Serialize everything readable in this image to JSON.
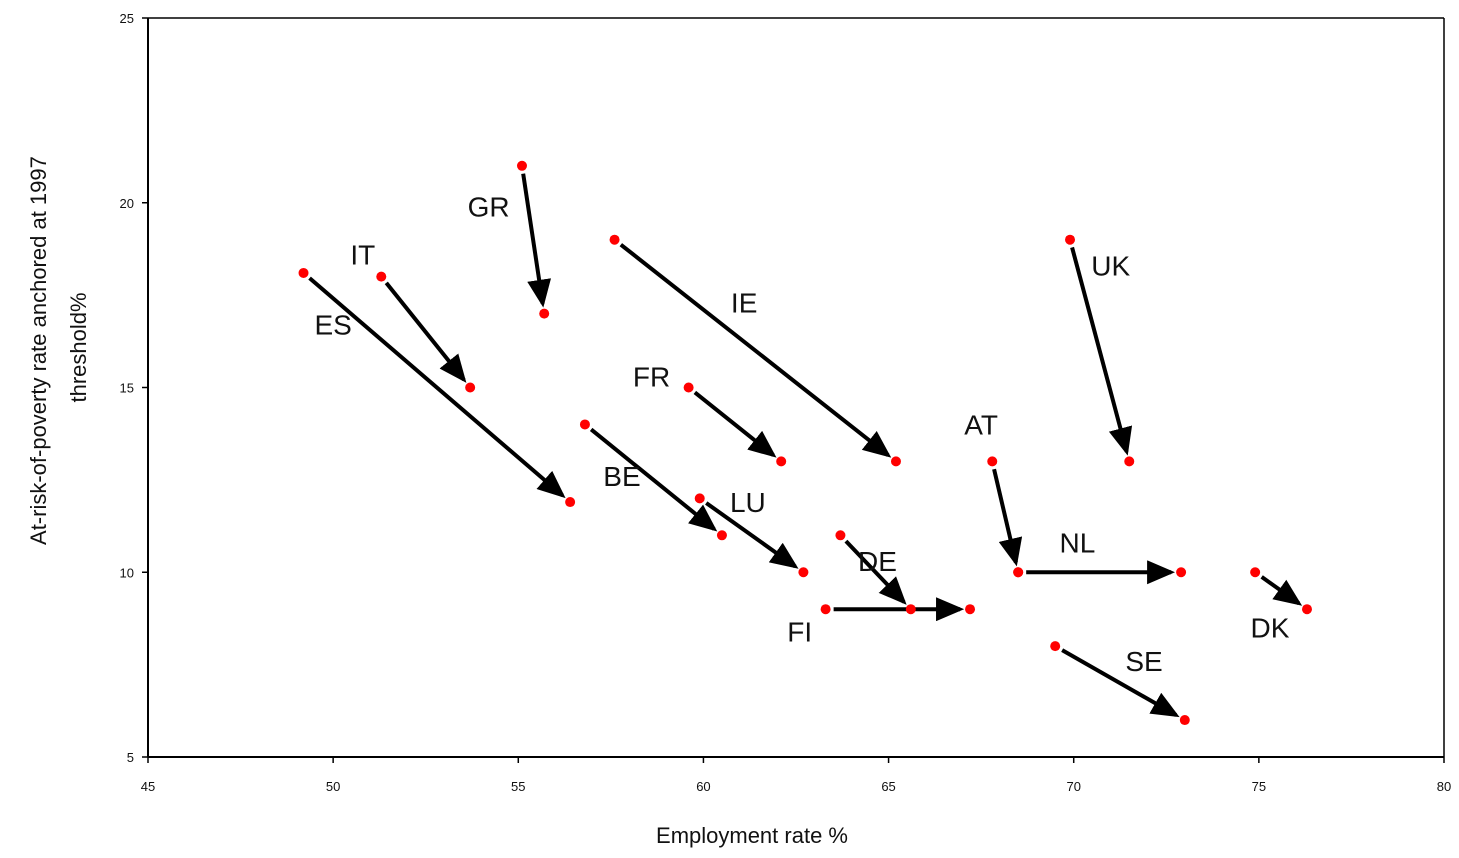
{
  "chart_data": {
    "type": "scatter",
    "title": "",
    "xlabel": "Employment rate %",
    "ylabel_lines": [
      "At-risk-of-poverty rate anchored at 1997",
      "threshold%"
    ],
    "xlim": [
      45,
      80
    ],
    "ylim": [
      5,
      25
    ],
    "x_ticks": [
      {
        "value": 45,
        "label": "45"
      },
      {
        "value": 50,
        "label": "50"
      },
      {
        "value": 55,
        "label": "55"
      },
      {
        "value": 60,
        "label": "60"
      },
      {
        "value": 65,
        "label": "65"
      },
      {
        "value": 70,
        "label": "70"
      },
      {
        "value": 75,
        "label": "75"
      },
      {
        "value": 80,
        "label": "80"
      }
    ],
    "y_ticks": [
      {
        "value": 5,
        "label": "5"
      },
      {
        "value": 10,
        "label": "10"
      },
      {
        "value": 15,
        "label": "15"
      },
      {
        "value": 20,
        "label": "20"
      },
      {
        "value": 25,
        "label": "25"
      }
    ],
    "grid": false,
    "marker_color": "#ff0000",
    "arrow_color": "#000000",
    "countries": [
      {
        "code": "ES",
        "from": [
          49.2,
          18.1
        ],
        "to": [
          56.4,
          11.9
        ],
        "label_at": [
          50.0,
          16.7
        ]
      },
      {
        "code": "IT",
        "from": [
          51.3,
          18.0
        ],
        "to": [
          53.7,
          15.0
        ],
        "label_at": [
          50.8,
          18.6
        ]
      },
      {
        "code": "GR",
        "from": [
          55.1,
          21.0
        ],
        "to": [
          55.7,
          17.0
        ],
        "label_at": [
          54.2,
          19.9
        ]
      },
      {
        "code": "IE",
        "from": [
          57.6,
          19.0
        ],
        "to": [
          65.2,
          13.0
        ],
        "label_at": [
          61.1,
          17.3
        ]
      },
      {
        "code": "FR",
        "from": [
          59.6,
          15.0
        ],
        "to": [
          62.1,
          13.0
        ],
        "label_at": [
          58.6,
          15.3
        ]
      },
      {
        "code": "BE",
        "from": [
          56.8,
          14.0
        ],
        "to": [
          60.5,
          11.0
        ],
        "label_at": [
          57.8,
          12.6
        ]
      },
      {
        "code": "LU",
        "from": [
          59.9,
          12.0
        ],
        "to": [
          62.7,
          10.0
        ],
        "label_at": [
          61.2,
          11.9
        ]
      },
      {
        "code": "DE",
        "from": [
          63.7,
          11.0
        ],
        "to": [
          65.6,
          9.0
        ],
        "label_at": [
          64.7,
          10.3
        ]
      },
      {
        "code": "FI",
        "from": [
          63.3,
          9.0
        ],
        "to": [
          67.2,
          9.0
        ],
        "label_at": [
          62.6,
          8.4
        ]
      },
      {
        "code": "AT",
        "from": [
          67.8,
          13.0
        ],
        "to": [
          68.5,
          10.0
        ],
        "label_at": [
          67.5,
          14.0
        ]
      },
      {
        "code": "NL",
        "from": [
          68.5,
          10.0
        ],
        "to": [
          72.9,
          10.0
        ],
        "label_at": [
          70.1,
          10.8
        ]
      },
      {
        "code": "UK",
        "from": [
          69.9,
          19.0
        ],
        "to": [
          71.5,
          13.0
        ],
        "label_at": [
          71.0,
          18.3
        ]
      },
      {
        "code": "DK",
        "from": [
          74.9,
          10.0
        ],
        "to": [
          76.3,
          9.0
        ],
        "label_at": [
          75.3,
          8.5
        ]
      },
      {
        "code": "SE",
        "from": [
          69.5,
          8.0
        ],
        "to": [
          73.0,
          6.0
        ],
        "label_at": [
          71.9,
          7.6
        ]
      }
    ]
  }
}
